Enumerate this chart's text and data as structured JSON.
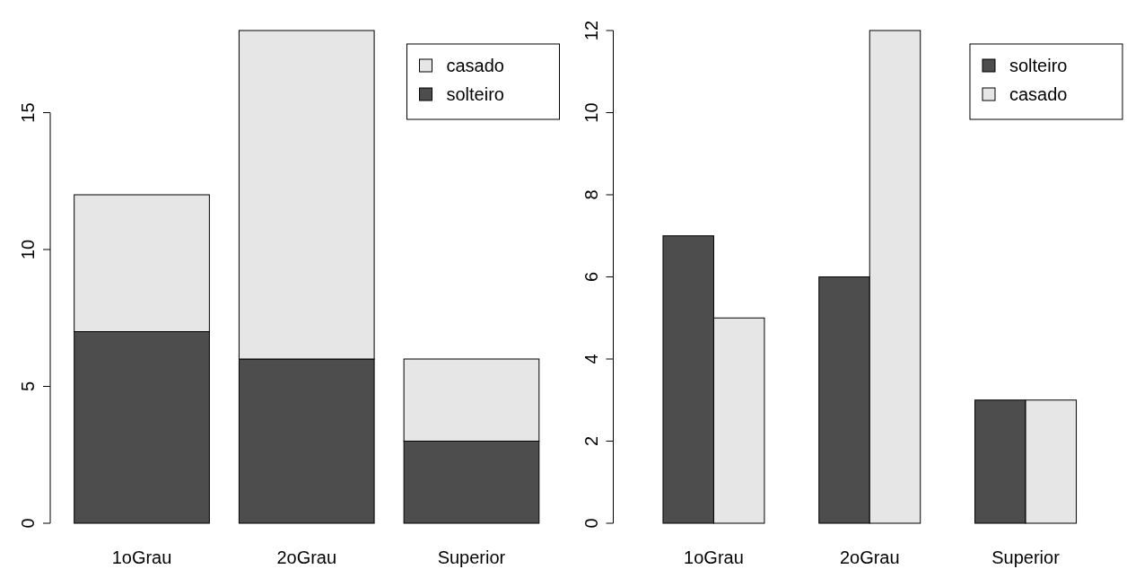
{
  "chart_data": [
    {
      "type": "bar",
      "stacked": true,
      "categories": [
        "1oGrau",
        "2oGrau",
        "Superior"
      ],
      "series": [
        {
          "name": "solteiro",
          "color": "#4d4d4d",
          "values": [
            7,
            6,
            3
          ]
        },
        {
          "name": "casado",
          "color": "#e6e6e6",
          "values": [
            5,
            12,
            3
          ]
        }
      ],
      "ylim": [
        0,
        18
      ],
      "yticks": [
        0,
        5,
        10,
        15
      ],
      "legend": "top right",
      "grid": false
    },
    {
      "type": "bar",
      "categories": [
        "1oGrau",
        "2oGrau",
        "Superior"
      ],
      "series": [
        {
          "name": "solteiro",
          "color": "#4d4d4d",
          "values": [
            7,
            6,
            3
          ]
        },
        {
          "name": "casado",
          "color": "#e6e6e6",
          "values": [
            5,
            12,
            3
          ]
        }
      ],
      "ylim": [
        0,
        12
      ],
      "yticks": [
        0,
        2,
        4,
        6,
        8,
        10,
        12
      ],
      "legend": "top right",
      "grid": false
    }
  ]
}
